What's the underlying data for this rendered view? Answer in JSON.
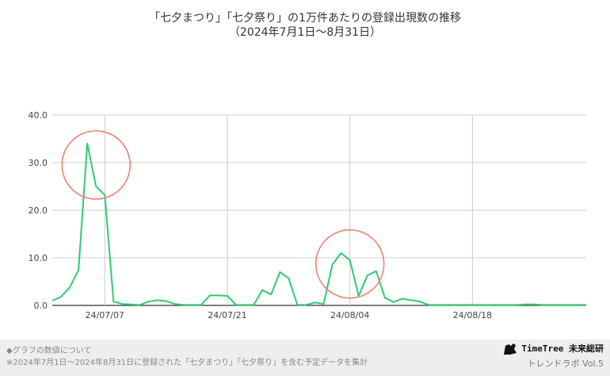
{
  "chart_data": {
    "type": "line",
    "title": "「七夕まつり」「七夕祭り」の1万件あたりの登録出現数の推移",
    "subtitle": "（2024年7月1日〜8月31日）",
    "y_ticks": [
      "0.0",
      "10.0",
      "20.0",
      "30.0",
      "40.0"
    ],
    "ylim": [
      0,
      40
    ],
    "x_ticks": [
      {
        "label": "24/07/07",
        "date": "2024-07-07"
      },
      {
        "label": "24/07/21",
        "date": "2024-07-21"
      },
      {
        "label": "24/08/04",
        "date": "2024-08-04"
      },
      {
        "label": "24/08/18",
        "date": "2024-08-18"
      }
    ],
    "xlim": [
      "2024-07-01",
      "2024-08-31"
    ],
    "grid": true,
    "series": [
      {
        "color": "#2ecc71",
        "points": [
          [
            "2024-07-01",
            1.0
          ],
          [
            "2024-07-02",
            1.8
          ],
          [
            "2024-07-03",
            3.8
          ],
          [
            "2024-07-04",
            7.4
          ],
          [
            "2024-07-05",
            34.0
          ],
          [
            "2024-07-06",
            25.0
          ],
          [
            "2024-07-07",
            23.2
          ],
          [
            "2024-07-08",
            0.8
          ],
          [
            "2024-07-09",
            0.3
          ],
          [
            "2024-07-10",
            0.2
          ],
          [
            "2024-07-11",
            0.1
          ],
          [
            "2024-07-12",
            0.8
          ],
          [
            "2024-07-13",
            1.1
          ],
          [
            "2024-07-14",
            0.9
          ],
          [
            "2024-07-15",
            0.3
          ],
          [
            "2024-07-16",
            0.1
          ],
          [
            "2024-07-17",
            0.1
          ],
          [
            "2024-07-18",
            0.1
          ],
          [
            "2024-07-19",
            2.1
          ],
          [
            "2024-07-20",
            2.1
          ],
          [
            "2024-07-21",
            2.0
          ],
          [
            "2024-07-22",
            0.1
          ],
          [
            "2024-07-23",
            0.1
          ],
          [
            "2024-07-24",
            0.1
          ],
          [
            "2024-07-25",
            3.2
          ],
          [
            "2024-07-26",
            2.3
          ],
          [
            "2024-07-27",
            7.0
          ],
          [
            "2024-07-28",
            5.7
          ],
          [
            "2024-07-29",
            0.1
          ],
          [
            "2024-07-30",
            0.1
          ],
          [
            "2024-07-31",
            0.6
          ],
          [
            "2024-08-01",
            0.3
          ],
          [
            "2024-08-02",
            8.6
          ],
          [
            "2024-08-03",
            11.0
          ],
          [
            "2024-08-04",
            9.5
          ],
          [
            "2024-08-05",
            2.0
          ],
          [
            "2024-08-06",
            6.3
          ],
          [
            "2024-08-07",
            7.2
          ],
          [
            "2024-08-08",
            1.6
          ],
          [
            "2024-08-09",
            0.7
          ],
          [
            "2024-08-10",
            1.4
          ],
          [
            "2024-08-11",
            1.1
          ],
          [
            "2024-08-12",
            0.8
          ],
          [
            "2024-08-13",
            0.1
          ],
          [
            "2024-08-14",
            0.1
          ],
          [
            "2024-08-15",
            0.1
          ],
          [
            "2024-08-16",
            0.1
          ],
          [
            "2024-08-17",
            0.1
          ],
          [
            "2024-08-18",
            0.1
          ],
          [
            "2024-08-19",
            0.1
          ],
          [
            "2024-08-20",
            0.1
          ],
          [
            "2024-08-21",
            0.1
          ],
          [
            "2024-08-22",
            0.1
          ],
          [
            "2024-08-23",
            0.1
          ],
          [
            "2024-08-24",
            0.2
          ],
          [
            "2024-08-25",
            0.2
          ],
          [
            "2024-08-26",
            0.1
          ],
          [
            "2024-08-27",
            0.1
          ],
          [
            "2024-08-28",
            0.1
          ],
          [
            "2024-08-29",
            0.1
          ],
          [
            "2024-08-30",
            0.1
          ],
          [
            "2024-08-31",
            0.1
          ]
        ]
      }
    ],
    "highlight_circles": [
      {
        "center_date": "2024-07-06",
        "center_value": 29.5,
        "color": "#f08070"
      },
      {
        "center_date": "2024-08-04",
        "center_value": 8.7,
        "color": "#f08070"
      }
    ]
  },
  "footer": {
    "note_heading": "◆グラフの数値について",
    "note_body": "※2024年7月1日〜2024年8月31日に登録された「七夕まつり」「七夕祭り」を含む予定データを集計",
    "brand_name": "TimeTree 未来総研",
    "brand_sub": "トレンドラボ Vol.5"
  }
}
